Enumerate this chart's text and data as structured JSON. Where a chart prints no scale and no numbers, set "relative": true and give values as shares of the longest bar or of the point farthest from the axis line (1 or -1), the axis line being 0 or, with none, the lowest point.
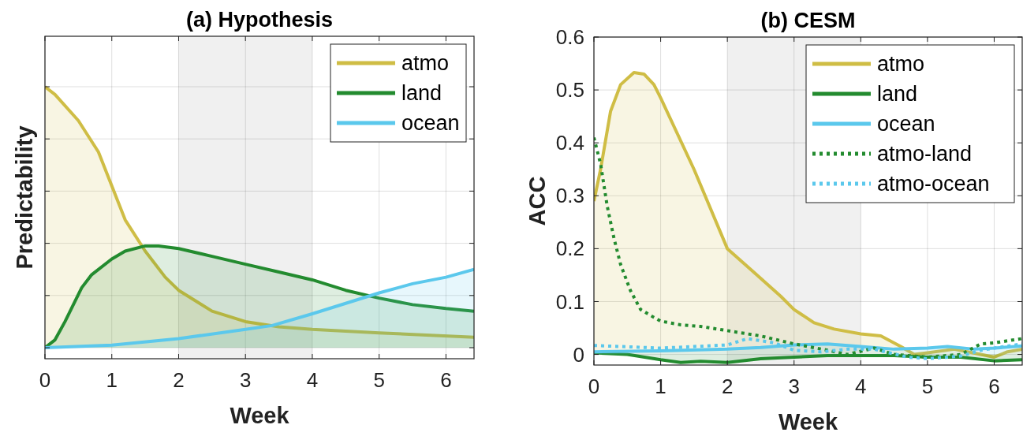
{
  "chart_data": [
    {
      "type": "area",
      "title": "(a) Hypothesis",
      "xlabel": "Week",
      "ylabel": "Predictability",
      "relative": true,
      "tick_labels": "x",
      "xlim": [
        0,
        6.42
      ],
      "xticks": [
        0,
        1,
        2,
        3,
        4,
        5,
        6
      ],
      "grid": true,
      "legend": "top right",
      "bands": [
        {
          "axis": "x",
          "from": 2,
          "to": 4,
          "color": "#f0f0f0"
        }
      ],
      "series": [
        {
          "name": "atmo",
          "color": "#cfbd45",
          "x": [
            0,
            0.15,
            0.5,
            0.8,
            1,
            1.2,
            1.5,
            1.8,
            2,
            2.5,
            3,
            3.5,
            4,
            5,
            6.42
          ],
          "values": [
            1,
            0.97,
            0.87,
            0.75,
            0.62,
            0.49,
            0.37,
            0.27,
            0.22,
            0.14,
            0.1,
            0.08,
            0.07,
            0.057,
            0.04
          ]
        },
        {
          "name": "land",
          "color": "#238b2f",
          "x": [
            0,
            0.15,
            0.3,
            0.55,
            0.7,
            1,
            1.2,
            1.5,
            1.7,
            2,
            2.5,
            3,
            3.5,
            4,
            4.5,
            5,
            5.5,
            6,
            6.42
          ],
          "values": [
            0,
            0.03,
            0.1,
            0.23,
            0.28,
            0.34,
            0.37,
            0.39,
            0.39,
            0.38,
            0.35,
            0.32,
            0.29,
            0.26,
            0.22,
            0.19,
            0.165,
            0.15,
            0.14
          ]
        },
        {
          "name": "ocean",
          "color": "#5bc8ec",
          "x": [
            0,
            1,
            2,
            3,
            3.4,
            4,
            4.5,
            5,
            5.5,
            6,
            6.42
          ],
          "values": [
            0,
            0.01,
            0.035,
            0.07,
            0.085,
            0.13,
            0.17,
            0.21,
            0.245,
            0.27,
            0.3
          ]
        }
      ]
    },
    {
      "type": "area",
      "title": "(b) CESM",
      "xlabel": "Week",
      "ylabel": "ACC",
      "xlim": [
        0,
        6.42
      ],
      "xticks": [
        0,
        1,
        2,
        3,
        4,
        5,
        6
      ],
      "ylim": [
        -0.02,
        0.6
      ],
      "yticks": [
        0,
        0.1,
        0.2,
        0.3,
        0.4,
        0.5,
        0.6
      ],
      "grid": true,
      "legend": "top right",
      "bands": [
        {
          "axis": "x",
          "from": 2,
          "to": 4,
          "color": "#f0f0f0"
        }
      ],
      "series": [
        {
          "name": "atmo",
          "color": "#cfbd45",
          "x": [
            0,
            0.1,
            0.25,
            0.4,
            0.6,
            0.75,
            0.9,
            1,
            1.5,
            2,
            2.4,
            2.8,
            3,
            3.3,
            3.6,
            4,
            4.3,
            4.6,
            4.8,
            5,
            5.4,
            5.8,
            6,
            6.2,
            6.42
          ],
          "values": [
            0.29,
            0.35,
            0.46,
            0.51,
            0.533,
            0.53,
            0.51,
            0.485,
            0.35,
            0.2,
            0.155,
            0.11,
            0.085,
            0.06,
            0.048,
            0.039,
            0.035,
            0.015,
            0,
            0.003,
            0.01,
            0,
            -0.005,
            0.005,
            0.01
          ]
        },
        {
          "name": "land",
          "color": "#238b2f",
          "x": [
            0,
            0.5,
            1,
            1.3,
            1.6,
            2,
            2.5,
            3,
            3.5,
            4,
            4.5,
            5,
            5.5,
            6,
            6.42
          ],
          "values": [
            0.003,
            0,
            -0.01,
            -0.015,
            -0.013,
            -0.015,
            -0.008,
            -0.005,
            -0.002,
            -0.002,
            -0.002,
            -0.005,
            -0.005,
            -0.012,
            -0.01
          ]
        },
        {
          "name": "ocean",
          "color": "#5bc8ec",
          "x": [
            0,
            1,
            2,
            2.5,
            3,
            3.5,
            4,
            4.5,
            5,
            5.3,
            5.7,
            6,
            6.42
          ],
          "values": [
            0.005,
            0.007,
            0.01,
            0.013,
            0.018,
            0.02,
            0.015,
            0.01,
            0.012,
            0.015,
            0.01,
            0.012,
            0.016
          ]
        },
        {
          "name": "atmo-land",
          "type": "line",
          "line_style": "dotted",
          "color": "#238b2f",
          "x": [
            0,
            0.1,
            0.2,
            0.3,
            0.4,
            0.55,
            0.7,
            0.9,
            1,
            1.3,
            1.6,
            2,
            2.5,
            3,
            3.5,
            3.8,
            4.2,
            4.5,
            5,
            5.5,
            5.8,
            6,
            6.42
          ],
          "values": [
            0.41,
            0.36,
            0.28,
            0.22,
            0.17,
            0.12,
            0.085,
            0.07,
            0.063,
            0.056,
            0.053,
            0.045,
            0.035,
            0.02,
            0.008,
            0,
            0.012,
            0,
            -0.005,
            0,
            0.02,
            0.022,
            0.03
          ]
        },
        {
          "name": "atmo-ocean",
          "type": "line",
          "line_style": "dotted",
          "color": "#5bc8ec",
          "x": [
            0,
            1,
            1.5,
            2,
            2.3,
            2.7,
            3,
            3.4,
            3.8,
            4.2,
            4.7,
            5,
            5.5,
            5.8,
            6,
            6.42
          ],
          "values": [
            0.017,
            0.012,
            0.015,
            0.018,
            0.03,
            0.022,
            0.008,
            0.005,
            0.01,
            0.01,
            -0.005,
            -0.008,
            -0.003,
            0.008,
            0.012,
            0.02
          ]
        }
      ]
    }
  ]
}
